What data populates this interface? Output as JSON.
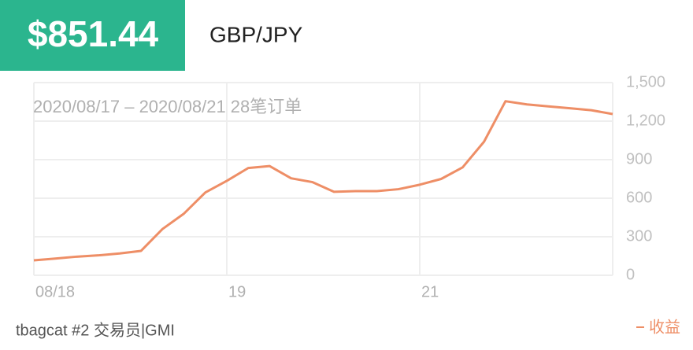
{
  "header": {
    "amount": "$851.44",
    "pair": "GBP/JPY"
  },
  "chart_data": {
    "type": "line",
    "subtitle": "2020/08/17 – 2020/08/21 28笔订单",
    "categories": [
      "08/18",
      null,
      null,
      null,
      null,
      null,
      null,
      null,
      null,
      "19",
      null,
      null,
      null,
      null,
      null,
      null,
      null,
      null,
      "21",
      null,
      null,
      null,
      null,
      null,
      null,
      null,
      null,
      null
    ],
    "series": [
      {
        "name": "收益",
        "color": "#ee8e66",
        "values": [
          116,
          130,
          145,
          155,
          170,
          190,
          360,
          480,
          645,
          735,
          835,
          850,
          755,
          725,
          650,
          655,
          655,
          670,
          705,
          750,
          840,
          1040,
          1355,
          1330,
          1315,
          1300,
          1285,
          1255
        ]
      }
    ],
    "ylim": [
      0,
      1500
    ],
    "yticks": [
      0,
      300,
      600,
      900,
      {
        "value": 1200,
        "label": "1,200"
      },
      {
        "value": 1500,
        "label": "1,500"
      }
    ],
    "grid": true
  },
  "footer": {
    "user": "tbagcat #2 交易员|GMI"
  }
}
